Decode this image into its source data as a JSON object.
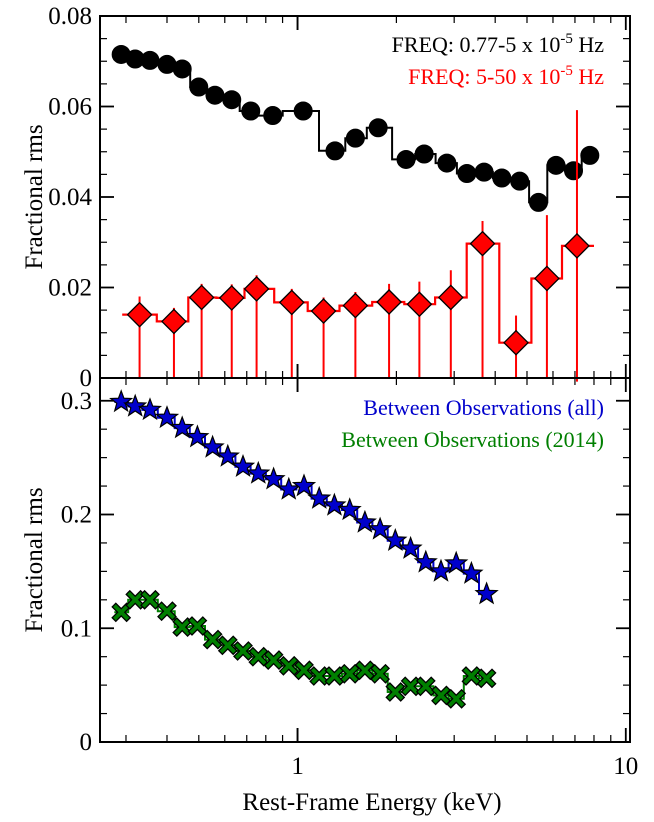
{
  "chart_data": [
    {
      "type": "scatter",
      "panel": "top",
      "xscale": "log",
      "xlim": [
        0.25,
        10.3
      ],
      "ylim": [
        0,
        0.08
      ],
      "ylabel": "Fractional rms",
      "y_ticks": [
        0,
        0.02,
        0.04,
        0.06,
        0.08
      ],
      "y_tick_labels": [
        "0",
        "0.02",
        "0.04",
        "0.06",
        "0.08"
      ],
      "legend_placement": "top-right",
      "series": [
        {
          "name": "FREQ: 0.77-5 x 10-5 Hz",
          "legend_parts": [
            "FREQ: 0.77-5 x 10",
            "-5",
            " Hz"
          ],
          "color": "#000000",
          "marker": "circle",
          "points": [
            {
              "x": 0.29,
              "y": 0.0715,
              "lo": 0.2725,
              "hi": 0.3137,
              "err": 0
            },
            {
              "x": 0.32,
              "y": 0.0705,
              "lo": 0.3137,
              "hi": 0.3317,
              "err": 0
            },
            {
              "x": 0.355,
              "y": 0.0702,
              "lo": 0.3317,
              "hi": 0.3759,
              "err": 0
            },
            {
              "x": 0.4,
              "y": 0.0693,
              "lo": 0.3759,
              "hi": 0.4217,
              "err": 0
            },
            {
              "x": 0.445,
              "y": 0.0683,
              "lo": 0.4217,
              "hi": 0.4709,
              "err": 0
            },
            {
              "x": 0.5,
              "y": 0.0643,
              "lo": 0.4709,
              "hi": 0.5295,
              "err": 0
            },
            {
              "x": 0.56,
              "y": 0.0625,
              "lo": 0.5295,
              "hi": 0.5922,
              "err": 0
            },
            {
              "x": 0.63,
              "y": 0.0615,
              "lo": 0.5922,
              "hi": 0.6661,
              "err": 0
            },
            {
              "x": 0.72,
              "y": 0.059,
              "lo": 0.6661,
              "hi": 0.7597,
              "err": 0
            },
            {
              "x": 0.84,
              "y": 0.058,
              "lo": 0.7597,
              "hi": 0.9005,
              "err": 0
            },
            {
              "x": 1.04,
              "y": 0.059,
              "lo": 0.9005,
              "hi": 1.1624,
              "err": 0
            },
            {
              "x": 1.3,
              "y": 0.0502,
              "lo": 1.1624,
              "hi": 1.3975,
              "err": 0
            },
            {
              "x": 1.5,
              "y": 0.053,
              "lo": 1.3975,
              "hi": 1.6254,
              "err": 0
            },
            {
              "x": 1.76,
              "y": 0.0553,
              "lo": 1.6254,
              "hi": 1.9404,
              "err": 0
            },
            {
              "x": 2.14,
              "y": 0.0483,
              "lo": 1.9404,
              "hi": 2.2825,
              "err": 0
            },
            {
              "x": 2.43,
              "y": 0.0495,
              "lo": 2.2825,
              "hi": 2.6325,
              "err": 0
            },
            {
              "x": 2.85,
              "y": 0.0475,
              "lo": 2.6325,
              "hi": 3.0569,
              "err": 0
            },
            {
              "x": 3.28,
              "y": 0.0452,
              "lo": 3.0569,
              "hi": 3.4875,
              "err": 0
            },
            {
              "x": 3.7,
              "y": 0.0455,
              "lo": 3.4875,
              "hi": 3.9363,
              "err": 0
            },
            {
              "x": 4.19,
              "y": 0.0442,
              "lo": 3.9363,
              "hi": 4.46,
              "err": 0
            },
            {
              "x": 4.75,
              "y": 0.0435,
              "lo": 4.46,
              "hi": 5.0744,
              "err": 0
            },
            {
              "x": 5.42,
              "y": 0.0388,
              "lo": 5.0744,
              "hi": 5.7637,
              "err": 0
            },
            {
              "x": 6.13,
              "y": 0.047,
              "lo": 5.7637,
              "hi": 6.5193,
              "err": 0
            },
            {
              "x": 6.93,
              "y": 0.0458,
              "lo": 6.5193,
              "hi": 7.3373,
              "err": 0
            },
            {
              "x": 7.77,
              "y": 0.0492,
              "lo": 7.3373,
              "hi": 8.0,
              "err": 0
            }
          ]
        },
        {
          "name": "FREQ: 5-50 x 10-5 Hz",
          "legend_parts": [
            "FREQ: 5-50 x 10",
            "-5",
            " Hz"
          ],
          "color": "#ff0000",
          "marker": "diamond",
          "points": [
            {
              "x": 0.33,
              "y": 0.014,
              "lo": 0.2921,
              "hi": 0.3723,
              "err": 0.004
            },
            {
              "x": 0.42,
              "y": 0.0125,
              "lo": 0.3723,
              "hi": 0.4644,
              "err": 0.003
            },
            {
              "x": 0.51,
              "y": 0.0178,
              "lo": 0.4644,
              "hi": 0.5657,
              "err": 0.003
            },
            {
              "x": 0.63,
              "y": 0.0177,
              "lo": 0.5657,
              "hi": 0.6892,
              "err": 0.003
            },
            {
              "x": 0.75,
              "y": 0.0197,
              "lo": 0.6892,
              "hi": 0.8488,
              "err": 0.003
            },
            {
              "x": 0.96,
              "y": 0.0167,
              "lo": 0.8488,
              "hi": 1.0733,
              "err": 0.003
            },
            {
              "x": 1.2,
              "y": 0.0148,
              "lo": 1.0733,
              "hi": 1.3416,
              "err": 0.003
            },
            {
              "x": 1.5,
              "y": 0.016,
              "lo": 1.3416,
              "hi": 1.6882,
              "err": 0.003
            },
            {
              "x": 1.9,
              "y": 0.0168,
              "lo": 1.6882,
              "hi": 2.1136,
              "err": 0.004
            },
            {
              "x": 2.35,
              "y": 0.0163,
              "lo": 2.1136,
              "hi": 2.6239,
              "err": 0.005
            },
            {
              "x": 2.93,
              "y": 0.0178,
              "lo": 2.6239,
              "hi": 3.2752,
              "err": 0.006
            },
            {
              "x": 3.66,
              "y": 0.0297,
              "lo": 3.2752,
              "hi": 4.1168,
              "err": 0.005
            },
            {
              "x": 4.63,
              "y": 0.0078,
              "lo": 4.1168,
              "hi": 5.1576,
              "err": 0.006
            },
            {
              "x": 5.75,
              "y": 0.022,
              "lo": 5.1576,
              "hi": 6.3911,
              "err": 0.014
            },
            {
              "x": 7.1,
              "y": 0.0292,
              "lo": 6.3911,
              "hi": 8.0,
              "err": 0.03
            }
          ]
        }
      ]
    },
    {
      "type": "scatter",
      "panel": "bottom",
      "xscale": "log",
      "xlim": [
        0.25,
        10.3
      ],
      "ylim": [
        0,
        0.32
      ],
      "xlabel": "Rest-Frame Energy (keV)",
      "ylabel": "Fractional rms",
      "x_ticks": [
        1,
        10
      ],
      "x_tick_labels": [
        "1",
        "10"
      ],
      "y_ticks": [
        0,
        0.1,
        0.2,
        0.3
      ],
      "y_tick_labels": [
        "0",
        "0.1",
        "0.2",
        "0.3"
      ],
      "legend_placement": "top-right",
      "series": [
        {
          "name": "Between Observations (all)",
          "color": "#0000cc",
          "marker": "star",
          "points": [
            {
              "x": 0.29,
              "y": 0.299,
              "lo": 0.2764,
              "hi": 0.3046
            },
            {
              "x": 0.32,
              "y": 0.295,
              "lo": 0.3046,
              "hi": 0.3364
            },
            {
              "x": 0.355,
              "y": 0.292,
              "lo": 0.3364,
              "hi": 0.3751
            },
            {
              "x": 0.4,
              "y": 0.285,
              "lo": 0.3751,
              "hi": 0.4221
            },
            {
              "x": 0.445,
              "y": 0.276,
              "lo": 0.4221,
              "hi": 0.4693
            },
            {
              "x": 0.495,
              "y": 0.268,
              "lo": 0.4693,
              "hi": 0.5222
            },
            {
              "x": 0.551,
              "y": 0.259,
              "lo": 0.5222,
              "hi": 0.5812
            },
            {
              "x": 0.613,
              "y": 0.251,
              "lo": 0.5812,
              "hi": 0.6465
            },
            {
              "x": 0.682,
              "y": 0.242,
              "lo": 0.6465,
              "hi": 0.7193
            },
            {
              "x": 0.759,
              "y": 0.236,
              "lo": 0.7193,
              "hi": 0.8005
            },
            {
              "x": 0.845,
              "y": 0.231,
              "lo": 0.8005,
              "hi": 0.8911
            },
            {
              "x": 0.94,
              "y": 0.222,
              "lo": 0.8911,
              "hi": 0.9914
            },
            {
              "x": 1.046,
              "y": 0.225,
              "lo": 0.9914,
              "hi": 1.1031
            },
            {
              "x": 1.164,
              "y": 0.214,
              "lo": 1.1031,
              "hi": 1.2273
            },
            {
              "x": 1.295,
              "y": 0.208,
              "lo": 1.2273,
              "hi": 1.3657
            },
            {
              "x": 1.441,
              "y": 0.204,
              "lo": 1.3657,
              "hi": 1.5197
            },
            {
              "x": 1.603,
              "y": 0.193,
              "lo": 1.5197,
              "hi": 1.6907
            },
            {
              "x": 1.784,
              "y": 0.187,
              "lo": 1.6907,
              "hi": 1.8814
            },
            {
              "x": 1.985,
              "y": 0.177,
              "lo": 1.8814,
              "hi": 2.0934
            },
            {
              "x": 2.209,
              "y": 0.17,
              "lo": 2.0934,
              "hi": 2.3297
            },
            {
              "x": 2.458,
              "y": 0.158,
              "lo": 2.3297,
              "hi": 2.5923
            },
            {
              "x": 2.735,
              "y": 0.15,
              "lo": 2.5923,
              "hi": 2.8845
            },
            {
              "x": 3.043,
              "y": 0.157,
              "lo": 2.8845,
              "hi": 3.2094
            },
            {
              "x": 3.386,
              "y": 0.148,
              "lo": 3.2094,
              "hi": 3.5705
            },
            {
              "x": 3.766,
              "y": 0.13,
              "lo": 3.5705,
              "hi": 3.9
            }
          ]
        },
        {
          "name": "Between Observations (2014)",
          "color": "#007f00",
          "marker": "x",
          "points": [
            {
              "x": 0.29,
              "y": 0.114,
              "lo": 0.2764,
              "hi": 0.3046
            },
            {
              "x": 0.32,
              "y": 0.125,
              "lo": 0.3046,
              "hi": 0.3364
            },
            {
              "x": 0.355,
              "y": 0.125,
              "lo": 0.3364,
              "hi": 0.3751
            },
            {
              "x": 0.4,
              "y": 0.115,
              "lo": 0.3751,
              "hi": 0.4221
            },
            {
              "x": 0.445,
              "y": 0.101,
              "lo": 0.4221,
              "hi": 0.4693
            },
            {
              "x": 0.495,
              "y": 0.102,
              "lo": 0.4693,
              "hi": 0.5222
            },
            {
              "x": 0.551,
              "y": 0.09,
              "lo": 0.5222,
              "hi": 0.5812
            },
            {
              "x": 0.613,
              "y": 0.085,
              "lo": 0.5812,
              "hi": 0.6465
            },
            {
              "x": 0.682,
              "y": 0.08,
              "lo": 0.6465,
              "hi": 0.7193
            },
            {
              "x": 0.759,
              "y": 0.075,
              "lo": 0.7193,
              "hi": 0.8005
            },
            {
              "x": 0.845,
              "y": 0.072,
              "lo": 0.8005,
              "hi": 0.8911
            },
            {
              "x": 0.94,
              "y": 0.067,
              "lo": 0.8911,
              "hi": 0.9914
            },
            {
              "x": 1.046,
              "y": 0.063,
              "lo": 0.9914,
              "hi": 1.1031
            },
            {
              "x": 1.164,
              "y": 0.058,
              "lo": 1.1031,
              "hi": 1.2273
            },
            {
              "x": 1.295,
              "y": 0.058,
              "lo": 1.2273,
              "hi": 1.3657
            },
            {
              "x": 1.441,
              "y": 0.06,
              "lo": 1.3657,
              "hi": 1.5197
            },
            {
              "x": 1.603,
              "y": 0.063,
              "lo": 1.5197,
              "hi": 1.6907
            },
            {
              "x": 1.784,
              "y": 0.06,
              "lo": 1.6907,
              "hi": 1.8814
            },
            {
              "x": 1.985,
              "y": 0.044,
              "lo": 1.8814,
              "hi": 2.0934
            },
            {
              "x": 2.209,
              "y": 0.049,
              "lo": 2.0934,
              "hi": 2.3297
            },
            {
              "x": 2.458,
              "y": 0.049,
              "lo": 2.3297,
              "hi": 2.5923
            },
            {
              "x": 2.735,
              "y": 0.041,
              "lo": 2.5923,
              "hi": 2.8845
            },
            {
              "x": 3.043,
              "y": 0.038,
              "lo": 2.8845,
              "hi": 3.2094
            },
            {
              "x": 3.386,
              "y": 0.058,
              "lo": 3.2094,
              "hi": 3.5705
            },
            {
              "x": 3.766,
              "y": 0.056,
              "lo": 3.5705,
              "hi": 3.9
            }
          ]
        }
      ]
    }
  ]
}
